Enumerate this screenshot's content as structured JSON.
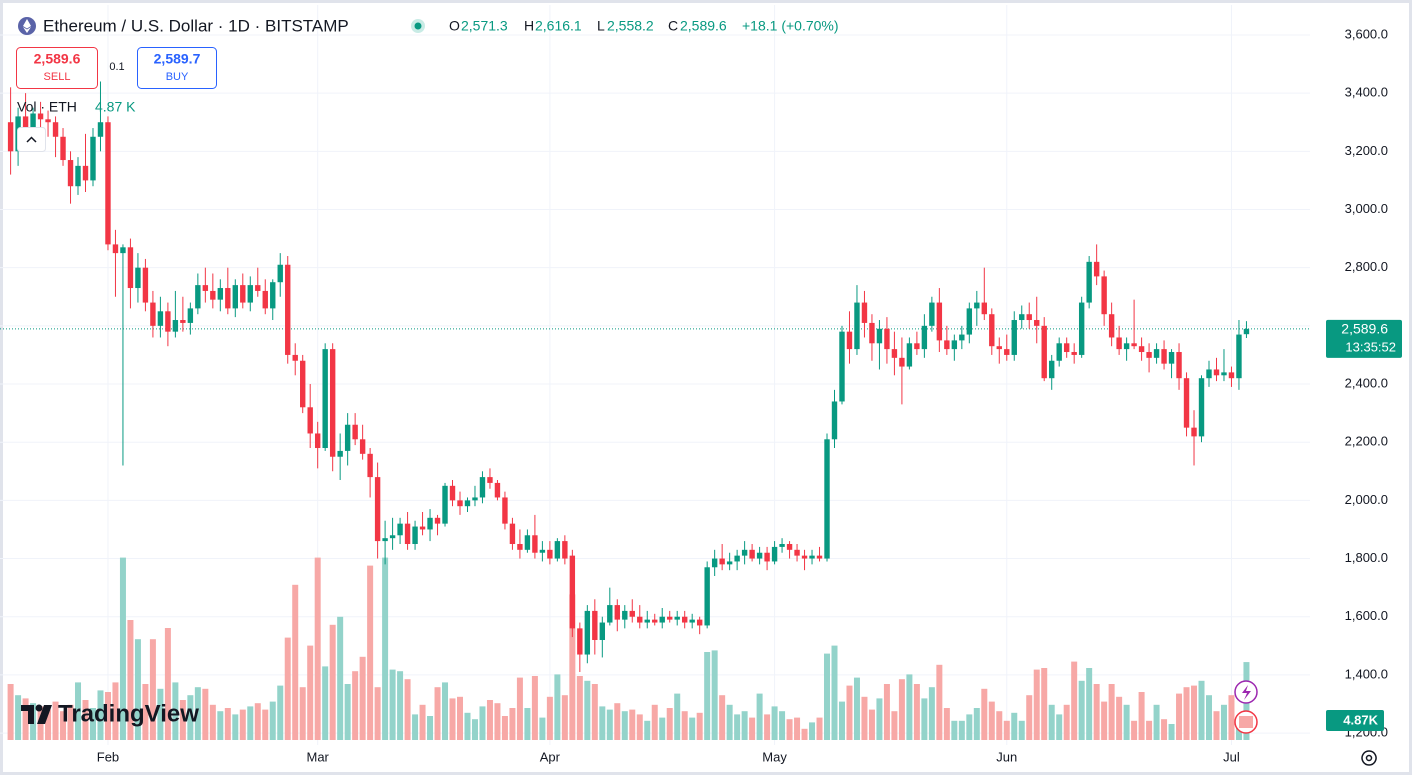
{
  "header": {
    "symbol": "Ethereum / U.S. Dollar · 1D · BITSTAMP",
    "o_label": "O",
    "o": "2,571.3",
    "h_label": "H",
    "h": "2,616.1",
    "l_label": "L",
    "l": "2,558.2",
    "c_label": "C",
    "c": "2,589.6",
    "change": "+18.1 (+0.70%)"
  },
  "trade": {
    "sell_price": "2,589.6",
    "sell": "SELL",
    "spread": "0.1",
    "buy_price": "2,589.7",
    "buy": "BUY"
  },
  "volume_legend": {
    "label": "Vol · ETH",
    "value": "4.87 K"
  },
  "badges": {
    "countdown": "13:35:52",
    "volume": "4.87K"
  },
  "logo": "TradingView",
  "chart_data": {
    "type": "candlestick",
    "up_color": "#089981",
    "down_color": "#f23645",
    "volume_up_color": "#93d3ca",
    "volume_down_color": "#f7a8a6",
    "ylim": [
      1159,
      3703
    ],
    "yticks": [
      {
        "value": 1200,
        "label": "1,200.0"
      },
      {
        "value": 1400,
        "label": "1,400.0"
      },
      {
        "value": 1600,
        "label": "1,600.0"
      },
      {
        "value": 1800,
        "label": "1,800.0"
      },
      {
        "value": 2000,
        "label": "2,000.0"
      },
      {
        "value": 2200,
        "label": "2,200.0"
      },
      {
        "value": 2400,
        "label": "2,400.0"
      },
      {
        "value": 2600,
        "label": "2,600.0"
      },
      {
        "value": 2800,
        "label": "2,800.0"
      },
      {
        "value": 3000,
        "label": "3,000.0"
      },
      {
        "value": 3200,
        "label": "3,200.0"
      },
      {
        "value": 3400,
        "label": "3,400.0"
      },
      {
        "value": 3600,
        "label": "3,600.0"
      }
    ],
    "grid": true,
    "last_price": {
      "value": 2589.6,
      "label": "2,589.6"
    },
    "volume_ylim": [
      0,
      12
    ],
    "categories": [
      null,
      null,
      null,
      null,
      null,
      null,
      null,
      null,
      null,
      null,
      null,
      null,
      null,
      "Feb",
      null,
      null,
      null,
      null,
      null,
      null,
      null,
      null,
      null,
      null,
      null,
      null,
      null,
      null,
      null,
      null,
      null,
      null,
      null,
      null,
      null,
      null,
      null,
      null,
      null,
      null,
      null,
      "Mar",
      null,
      null,
      null,
      null,
      null,
      null,
      null,
      null,
      null,
      null,
      null,
      null,
      null,
      null,
      null,
      null,
      null,
      null,
      null,
      null,
      null,
      null,
      null,
      null,
      null,
      null,
      null,
      null,
      null,
      null,
      "Apr",
      null,
      null,
      null,
      null,
      null,
      null,
      null,
      null,
      null,
      null,
      null,
      null,
      null,
      null,
      null,
      null,
      null,
      null,
      null,
      null,
      null,
      null,
      null,
      null,
      null,
      null,
      null,
      null,
      null,
      "May",
      null,
      null,
      null,
      null,
      null,
      null,
      null,
      null,
      null,
      null,
      null,
      null,
      null,
      null,
      null,
      null,
      null,
      null,
      null,
      null,
      null,
      null,
      null,
      null,
      null,
      null,
      null,
      null,
      null,
      null,
      "Jun",
      null,
      null,
      null,
      null,
      null,
      null,
      null,
      null,
      null,
      null,
      null,
      null,
      null,
      null,
      null,
      null,
      null,
      null,
      null,
      null,
      null,
      null,
      null,
      null,
      null,
      null,
      null,
      null,
      null,
      "Jul",
      null,
      null
    ],
    "ohlc": [
      [
        3300,
        3420,
        3120,
        3200
      ],
      [
        3200,
        3350,
        3150,
        3320
      ],
      [
        3320,
        3400,
        3230,
        3260
      ],
      [
        3260,
        3350,
        3200,
        3330
      ],
      [
        3330,
        3370,
        3260,
        3310
      ],
      [
        3310,
        3340,
        3250,
        3300
      ],
      [
        3300,
        3320,
        3180,
        3250
      ],
      [
        3250,
        3280,
        3150,
        3170
      ],
      [
        3170,
        3200,
        3020,
        3080
      ],
      [
        3080,
        3180,
        3050,
        3150
      ],
      [
        3150,
        3260,
        3060,
        3100
      ],
      [
        3100,
        3280,
        3080,
        3250
      ],
      [
        3250,
        3440,
        3200,
        3300
      ],
      [
        3300,
        3320,
        2860,
        2880
      ],
      [
        2880,
        2930,
        2700,
        2850
      ],
      [
        2850,
        2880,
        2120,
        2870
      ],
      [
        2870,
        2900,
        2660,
        2730
      ],
      [
        2730,
        2850,
        2680,
        2800
      ],
      [
        2800,
        2830,
        2650,
        2680
      ],
      [
        2680,
        2720,
        2560,
        2600
      ],
      [
        2600,
        2700,
        2560,
        2650
      ],
      [
        2650,
        2680,
        2530,
        2580
      ],
      [
        2580,
        2720,
        2560,
        2620
      ],
      [
        2620,
        2700,
        2580,
        2610
      ],
      [
        2610,
        2680,
        2570,
        2660
      ],
      [
        2660,
        2780,
        2640,
        2740
      ],
      [
        2740,
        2800,
        2680,
        2720
      ],
      [
        2720,
        2780,
        2660,
        2690
      ],
      [
        2690,
        2760,
        2650,
        2730
      ],
      [
        2730,
        2800,
        2640,
        2660
      ],
      [
        2660,
        2760,
        2630,
        2740
      ],
      [
        2740,
        2780,
        2660,
        2680
      ],
      [
        2680,
        2770,
        2650,
        2740
      ],
      [
        2740,
        2800,
        2700,
        2720
      ],
      [
        2720,
        2760,
        2640,
        2660
      ],
      [
        2660,
        2760,
        2620,
        2750
      ],
      [
        2750,
        2850,
        2700,
        2810
      ],
      [
        2810,
        2840,
        2470,
        2500
      ],
      [
        2500,
        2540,
        2430,
        2480
      ],
      [
        2480,
        2500,
        2300,
        2320
      ],
      [
        2320,
        2400,
        2180,
        2230
      ],
      [
        2230,
        2270,
        2110,
        2180
      ],
      [
        2180,
        2540,
        2170,
        2520
      ],
      [
        2520,
        2540,
        2100,
        2150
      ],
      [
        2150,
        2230,
        2070,
        2170
      ],
      [
        2170,
        2300,
        2120,
        2260
      ],
      [
        2260,
        2300,
        2190,
        2210
      ],
      [
        2210,
        2260,
        2140,
        2160
      ],
      [
        2160,
        2180,
        2010,
        2080
      ],
      [
        2080,
        2130,
        1800,
        1860
      ],
      [
        1860,
        1930,
        1780,
        1870
      ],
      [
        1870,
        1940,
        1830,
        1880
      ],
      [
        1880,
        1940,
        1850,
        1920
      ],
      [
        1920,
        1960,
        1830,
        1850
      ],
      [
        1850,
        1930,
        1830,
        1910
      ],
      [
        1910,
        1960,
        1880,
        1900
      ],
      [
        1900,
        1970,
        1860,
        1940
      ],
      [
        1940,
        1950,
        1880,
        1920
      ],
      [
        1920,
        2060,
        1910,
        2050
      ],
      [
        2050,
        2070,
        1980,
        2000
      ],
      [
        2000,
        2030,
        1950,
        1980
      ],
      [
        1980,
        2010,
        1960,
        2000
      ],
      [
        2000,
        2050,
        1980,
        2010
      ],
      [
        2010,
        2100,
        1990,
        2080
      ],
      [
        2080,
        2110,
        2040,
        2060
      ],
      [
        2060,
        2070,
        2000,
        2010
      ],
      [
        2010,
        2030,
        1900,
        1920
      ],
      [
        1920,
        1940,
        1830,
        1850
      ],
      [
        1850,
        1900,
        1800,
        1830
      ],
      [
        1830,
        1900,
        1820,
        1880
      ],
      [
        1880,
        1950,
        1800,
        1820
      ],
      [
        1820,
        1860,
        1790,
        1830
      ],
      [
        1830,
        1860,
        1780,
        1800
      ],
      [
        1800,
        1870,
        1790,
        1860
      ],
      [
        1860,
        1880,
        1780,
        1800
      ],
      [
        1810,
        1830,
        1530,
        1560
      ],
      [
        1560,
        1580,
        1410,
        1470
      ],
      [
        1470,
        1640,
        1440,
        1620
      ],
      [
        1620,
        1660,
        1470,
        1520
      ],
      [
        1520,
        1600,
        1460,
        1580
      ],
      [
        1580,
        1700,
        1570,
        1640
      ],
      [
        1640,
        1660,
        1550,
        1590
      ],
      [
        1590,
        1640,
        1560,
        1620
      ],
      [
        1620,
        1660,
        1580,
        1600
      ],
      [
        1600,
        1640,
        1560,
        1580
      ],
      [
        1580,
        1620,
        1560,
        1590
      ],
      [
        1590,
        1610,
        1570,
        1580
      ],
      [
        1580,
        1630,
        1560,
        1600
      ],
      [
        1600,
        1620,
        1580,
        1590
      ],
      [
        1590,
        1620,
        1570,
        1600
      ],
      [
        1600,
        1620,
        1560,
        1580
      ],
      [
        1580,
        1610,
        1560,
        1590
      ],
      [
        1590,
        1600,
        1540,
        1570
      ],
      [
        1570,
        1790,
        1560,
        1770
      ],
      [
        1770,
        1830,
        1740,
        1800
      ],
      [
        1800,
        1850,
        1760,
        1780
      ],
      [
        1780,
        1820,
        1760,
        1790
      ],
      [
        1790,
        1830,
        1760,
        1810
      ],
      [
        1810,
        1860,
        1780,
        1830
      ],
      [
        1830,
        1850,
        1790,
        1800
      ],
      [
        1800,
        1840,
        1780,
        1820
      ],
      [
        1820,
        1840,
        1760,
        1790
      ],
      [
        1790,
        1860,
        1780,
        1840
      ],
      [
        1840,
        1870,
        1820,
        1850
      ],
      [
        1850,
        1860,
        1800,
        1830
      ],
      [
        1830,
        1850,
        1790,
        1810
      ],
      [
        1810,
        1830,
        1760,
        1800
      ],
      [
        1800,
        1830,
        1780,
        1810
      ],
      [
        1810,
        1840,
        1790,
        1800
      ],
      [
        1800,
        2230,
        1790,
        2210
      ],
      [
        2210,
        2380,
        2180,
        2340
      ],
      [
        2340,
        2600,
        2330,
        2580
      ],
      [
        2580,
        2650,
        2470,
        2520
      ],
      [
        2520,
        2740,
        2500,
        2680
      ],
      [
        2680,
        2720,
        2560,
        2610
      ],
      [
        2610,
        2640,
        2480,
        2540
      ],
      [
        2540,
        2620,
        2450,
        2590
      ],
      [
        2590,
        2630,
        2470,
        2520
      ],
      [
        2520,
        2580,
        2430,
        2490
      ],
      [
        2490,
        2560,
        2330,
        2460
      ],
      [
        2460,
        2560,
        2450,
        2540
      ],
      [
        2540,
        2580,
        2500,
        2520
      ],
      [
        2520,
        2640,
        2490,
        2600
      ],
      [
        2600,
        2700,
        2580,
        2680
      ],
      [
        2680,
        2730,
        2510,
        2550
      ],
      [
        2550,
        2600,
        2500,
        2520
      ],
      [
        2520,
        2570,
        2480,
        2550
      ],
      [
        2550,
        2600,
        2520,
        2570
      ],
      [
        2570,
        2680,
        2540,
        2660
      ],
      [
        2660,
        2720,
        2600,
        2680
      ],
      [
        2680,
        2800,
        2620,
        2640
      ],
      [
        2640,
        2660,
        2500,
        2530
      ],
      [
        2530,
        2560,
        2470,
        2520
      ],
      [
        2520,
        2570,
        2480,
        2500
      ],
      [
        2500,
        2650,
        2480,
        2620
      ],
      [
        2620,
        2670,
        2590,
        2640
      ],
      [
        2640,
        2680,
        2590,
        2620
      ],
      [
        2620,
        2700,
        2540,
        2600
      ],
      [
        2600,
        2630,
        2410,
        2420
      ],
      [
        2420,
        2500,
        2380,
        2480
      ],
      [
        2480,
        2560,
        2460,
        2540
      ],
      [
        2540,
        2560,
        2490,
        2510
      ],
      [
        2510,
        2540,
        2470,
        2500
      ],
      [
        2500,
        2700,
        2490,
        2680
      ],
      [
        2680,
        2840,
        2660,
        2820
      ],
      [
        2820,
        2880,
        2740,
        2770
      ],
      [
        2770,
        2790,
        2600,
        2640
      ],
      [
        2640,
        2680,
        2530,
        2560
      ],
      [
        2560,
        2600,
        2500,
        2520
      ],
      [
        2520,
        2560,
        2480,
        2540
      ],
      [
        2540,
        2690,
        2520,
        2530
      ],
      [
        2530,
        2560,
        2480,
        2510
      ],
      [
        2510,
        2540,
        2440,
        2490
      ],
      [
        2490,
        2540,
        2470,
        2520
      ],
      [
        2520,
        2550,
        2450,
        2470
      ],
      [
        2470,
        2520,
        2420,
        2510
      ],
      [
        2510,
        2540,
        2380,
        2420
      ],
      [
        2420,
        2440,
        2220,
        2250
      ],
      [
        2250,
        2310,
        2120,
        2220
      ],
      [
        2220,
        2430,
        2200,
        2420
      ],
      [
        2420,
        2480,
        2390,
        2450
      ],
      [
        2450,
        2490,
        2410,
        2430
      ],
      [
        2430,
        2520,
        2410,
        2440
      ],
      [
        2440,
        2460,
        2390,
        2420
      ],
      [
        2420,
        2620,
        2380,
        2570
      ],
      [
        2571.3,
        2616.1,
        2558.2,
        2589.6
      ]
    ],
    "volume": [
      3.5,
      2.8,
      2.6,
      2.3,
      2.1,
      1.9,
      2.4,
      1.8,
      2.2,
      3.6,
      2.5,
      2.0,
      3.1,
      3.0,
      3.6,
      11.4,
      7.5,
      6.3,
      3.5,
      6.3,
      3.2,
      7.0,
      3.6,
      2.5,
      2.8,
      3.3,
      3.2,
      2.2,
      1.8,
      2.0,
      1.6,
      1.9,
      2.1,
      2.3,
      1.9,
      2.4,
      3.4,
      6.4,
      9.7,
      3.3,
      5.9,
      11.4,
      4.6,
      7.2,
      7.7,
      3.5,
      4.3,
      5.2,
      10.9,
      3.3,
      11.4,
      4.4,
      4.3,
      3.8,
      1.6,
      2.2,
      1.5,
      3.3,
      3.6,
      2.6,
      2.7,
      1.7,
      1.3,
      2.1,
      2.5,
      2.3,
      1.5,
      2.0,
      3.9,
      2.0,
      4.0,
      1.4,
      2.7,
      4.1,
      2.8,
      9.1,
      4.0,
      3.7,
      3.5,
      2.1,
      1.9,
      2.3,
      1.8,
      1.9,
      1.6,
      1.2,
      2.2,
      1.4,
      2.0,
      2.9,
      1.8,
      1.4,
      1.7,
      5.5,
      5.6,
      2.8,
      2.2,
      1.6,
      1.8,
      1.4,
      2.9,
      1.6,
      2.1,
      1.8,
      1.3,
      1.4,
      0.7,
      1.1,
      1.4,
      5.4,
      5.9,
      2.4,
      3.4,
      3.9,
      2.7,
      1.9,
      2.6,
      3.5,
      1.8,
      3.8,
      4.1,
      3.5,
      2.6,
      3.3,
      4.7,
      2.0,
      1.2,
      1.2,
      1.6,
      2.0,
      3.2,
      2.4,
      1.8,
      1.2,
      1.7,
      1.2,
      2.8,
      4.4,
      4.5,
      2.2,
      1.6,
      2.2,
      4.9,
      3.7,
      4.5,
      3.5,
      2.4,
      3.5,
      2.7,
      2.2,
      1.2,
      3.0,
      1.2,
      2.2,
      1.3,
      1.0,
      2.9,
      3.3,
      3.4,
      3.7,
      2.8,
      1.8,
      2.2,
      2.8,
      1.5,
      4.87
    ]
  }
}
